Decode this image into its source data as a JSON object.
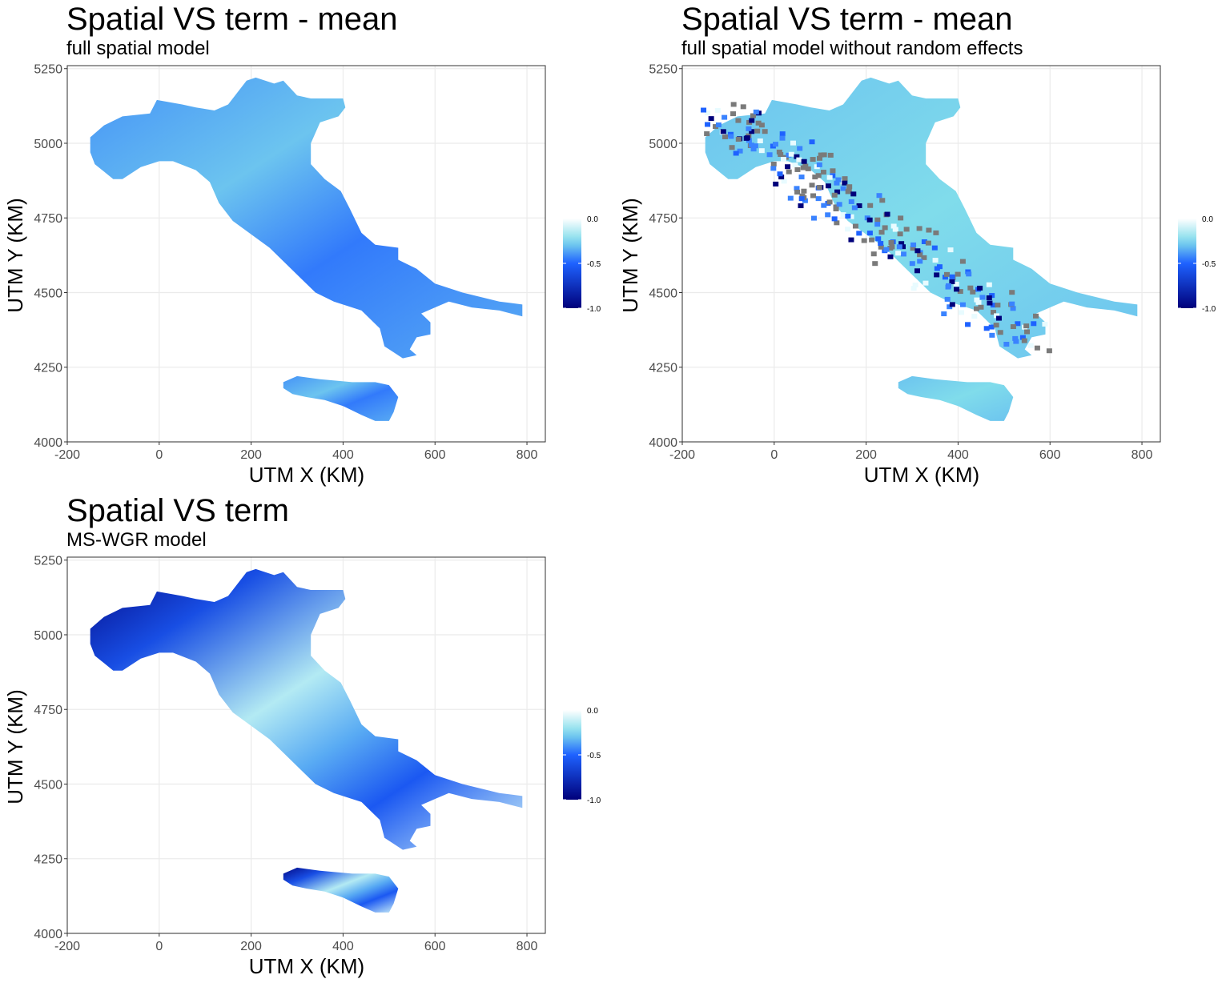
{
  "chart_data": [
    {
      "type": "heatmap",
      "title": "Spatial VS term - mean",
      "subtitle": "full spatial model",
      "xlabel": "UTM X (KM)",
      "ylabel": "UTM Y (KM)",
      "xlim": [
        -200,
        840
      ],
      "ylim": [
        4000,
        5260
      ],
      "x_ticks": [
        -200,
        0,
        200,
        400,
        600,
        800
      ],
      "y_ticks": [
        4000,
        4250,
        4500,
        4750,
        5000,
        5250
      ],
      "grid": true,
      "legend": {
        "position": "right",
        "min": -1.0,
        "max": 0.0,
        "labels": [
          "0.0",
          "-0.5",
          "-1.0"
        ],
        "colors": [
          "#ffffff",
          "#1e62ff",
          "#00007a"
        ]
      },
      "pattern": "smooth",
      "fill_value": -0.3
    },
    {
      "type": "heatmap",
      "title": "Spatial VS term - mean",
      "subtitle": "full spatial model without random effects",
      "xlabel": "UTM X (KM)",
      "ylabel": "UTM Y (KM)",
      "xlim": [
        -200,
        840
      ],
      "ylim": [
        4000,
        5260
      ],
      "x_ticks": [
        -200,
        0,
        200,
        400,
        600,
        800
      ],
      "y_ticks": [
        4000,
        4250,
        4500,
        4750,
        5000,
        5250
      ],
      "grid": true,
      "legend": {
        "position": "right",
        "min": -1.0,
        "max": 0.0,
        "labels": [
          "0.0",
          "-0.5",
          "-1.0"
        ],
        "colors": [
          "#ffffff",
          "#1e62ff",
          "#00007a"
        ]
      },
      "pattern": "noisy",
      "fill_value": -0.25
    },
    {
      "type": "heatmap",
      "title": "Spatial VS term",
      "subtitle": "MS-WGR model",
      "xlabel": "UTM X (KM)",
      "ylabel": "UTM Y (KM)",
      "xlim": [
        -200,
        840
      ],
      "ylim": [
        4000,
        5260
      ],
      "x_ticks": [
        -200,
        0,
        200,
        400,
        600,
        800
      ],
      "y_ticks": [
        4000,
        4250,
        4500,
        4750,
        5000,
        5250
      ],
      "grid": true,
      "legend": {
        "position": "right",
        "min": -1.0,
        "max": 0.0,
        "labels": [
          "0.0",
          "-0.5",
          "-1.0"
        ],
        "colors": [
          "#ffffff",
          "#1e62ff",
          "#00007a"
        ]
      },
      "pattern": "gradient",
      "fill_value": -0.4
    }
  ],
  "region_outline_km": [
    [
      [
        -150,
        5020
      ],
      [
        -120,
        5060
      ],
      [
        -80,
        5090
      ],
      [
        -20,
        5100
      ],
      [
        -5,
        5145
      ],
      [
        50,
        5130
      ],
      [
        80,
        5120
      ],
      [
        120,
        5110
      ],
      [
        150,
        5130
      ],
      [
        190,
        5210
      ],
      [
        210,
        5220
      ],
      [
        250,
        5200
      ],
      [
        270,
        5210
      ],
      [
        300,
        5160
      ],
      [
        330,
        5150
      ],
      [
        400,
        5150
      ],
      [
        405,
        5120
      ],
      [
        390,
        5090
      ],
      [
        350,
        5070
      ],
      [
        330,
        5000
      ],
      [
        330,
        4930
      ],
      [
        360,
        4880
      ],
      [
        395,
        4840
      ],
      [
        415,
        4780
      ],
      [
        440,
        4700
      ],
      [
        470,
        4660
      ],
      [
        520,
        4650
      ],
      [
        520,
        4610
      ],
      [
        560,
        4580
      ],
      [
        600,
        4530
      ],
      [
        660,
        4500
      ],
      [
        740,
        4470
      ],
      [
        790,
        4460
      ],
      [
        790,
        4420
      ],
      [
        740,
        4440
      ],
      [
        680,
        4450
      ],
      [
        630,
        4470
      ],
      [
        600,
        4450
      ],
      [
        570,
        4430
      ],
      [
        590,
        4400
      ],
      [
        590,
        4360
      ],
      [
        560,
        4350
      ],
      [
        545,
        4310
      ],
      [
        560,
        4290
      ],
      [
        530,
        4280
      ],
      [
        510,
        4300
      ],
      [
        490,
        4320
      ],
      [
        480,
        4380
      ],
      [
        440,
        4440
      ],
      [
        380,
        4470
      ],
      [
        340,
        4500
      ],
      [
        300,
        4560
      ],
      [
        240,
        4650
      ],
      [
        160,
        4740
      ],
      [
        130,
        4800
      ],
      [
        110,
        4870
      ],
      [
        80,
        4910
      ],
      [
        30,
        4940
      ],
      [
        0,
        4940
      ],
      [
        -40,
        4920
      ],
      [
        -80,
        4880
      ],
      [
        -100,
        4880
      ],
      [
        -140,
        4930
      ],
      [
        -150,
        4970
      ]
    ],
    [
      [
        270,
        4200
      ],
      [
        300,
        4220
      ],
      [
        350,
        4210
      ],
      [
        420,
        4200
      ],
      [
        470,
        4200
      ],
      [
        500,
        4190
      ],
      [
        520,
        4150
      ],
      [
        510,
        4100
      ],
      [
        500,
        4070
      ],
      [
        470,
        4070
      ],
      [
        440,
        4090
      ],
      [
        400,
        4120
      ],
      [
        360,
        4140
      ],
      [
        320,
        4150
      ],
      [
        290,
        4160
      ],
      [
        270,
        4180
      ]
    ]
  ]
}
